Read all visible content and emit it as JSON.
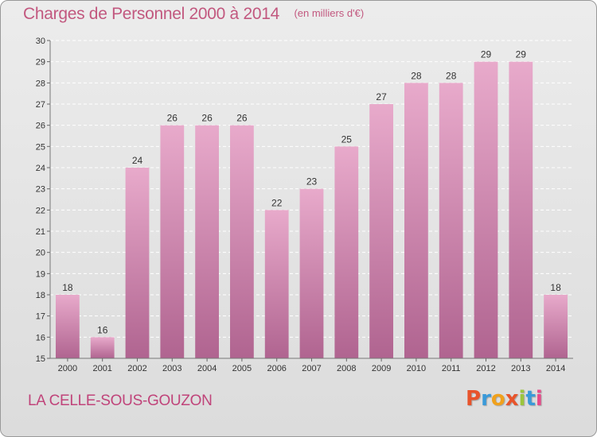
{
  "header": {
    "title": "Charges de Personnel 2000 à 2014",
    "subtitle": "(en milliers d'€)"
  },
  "footer": {
    "commune": "LA CELLE-SOUS-GOUZON",
    "logo": "Proxiti"
  },
  "colors": {
    "title": "#c2587f",
    "bar_top": "#e8aacb",
    "bar_bottom": "#b06490",
    "logo_letters": [
      "#e8542b",
      "#3a9ad9",
      "#f0a11c",
      "#e8542b",
      "#9bc53d",
      "#3a9ad9",
      "#e84a8a"
    ]
  },
  "chart_data": {
    "type": "bar",
    "title": "Charges de Personnel 2000 à 2014",
    "subtitle": "(en milliers d'€)",
    "categories": [
      "2000",
      "2001",
      "2002",
      "2003",
      "2004",
      "2005",
      "2006",
      "2007",
      "2008",
      "2009",
      "2010",
      "2011",
      "2012",
      "2013",
      "2014"
    ],
    "values": [
      18,
      16,
      24,
      26,
      26,
      26,
      22,
      23,
      25,
      27,
      28,
      28,
      29,
      29,
      18
    ],
    "ylim": [
      15,
      30
    ],
    "yticks": [
      15,
      16,
      17,
      18,
      19,
      20,
      21,
      22,
      23,
      24,
      25,
      26,
      27,
      28,
      29,
      30
    ],
    "grid": true
  }
}
